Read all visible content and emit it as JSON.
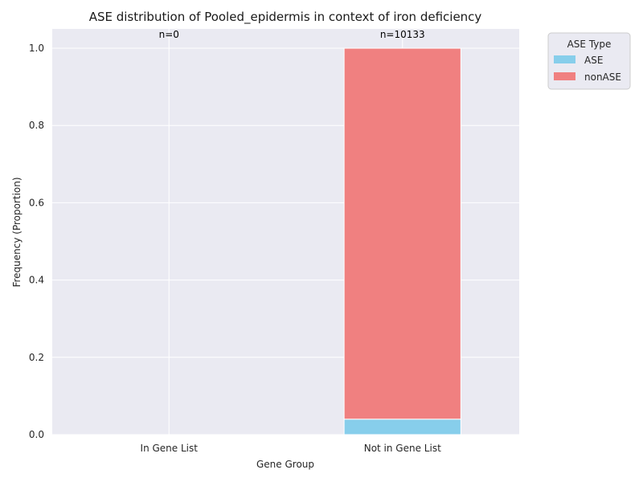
{
  "chart_data": {
    "type": "bar",
    "stacked": true,
    "title": "ASE distribution of Pooled_epidermis in context of iron deficiency",
    "xlabel": "Gene Group",
    "ylabel": "Frequency (Proportion)",
    "categories": [
      "In Gene List",
      "Not in Gene List"
    ],
    "series": [
      {
        "name": "ASE",
        "values": [
          0,
          0.04
        ],
        "color": "#87CEEB"
      },
      {
        "name": "nonASE",
        "values": [
          0,
          0.96
        ],
        "color": "#F08080"
      }
    ],
    "annotations": [
      "n=0",
      "n=10133"
    ],
    "ylim": [
      0,
      1.05
    ],
    "yticks": [
      "0.0",
      "0.2",
      "0.4",
      "0.6",
      "0.8",
      "1.0"
    ],
    "legend": {
      "title": "ASE Type",
      "placement": "outside-top-right"
    },
    "grid": true,
    "background": "#EAEAF2"
  }
}
